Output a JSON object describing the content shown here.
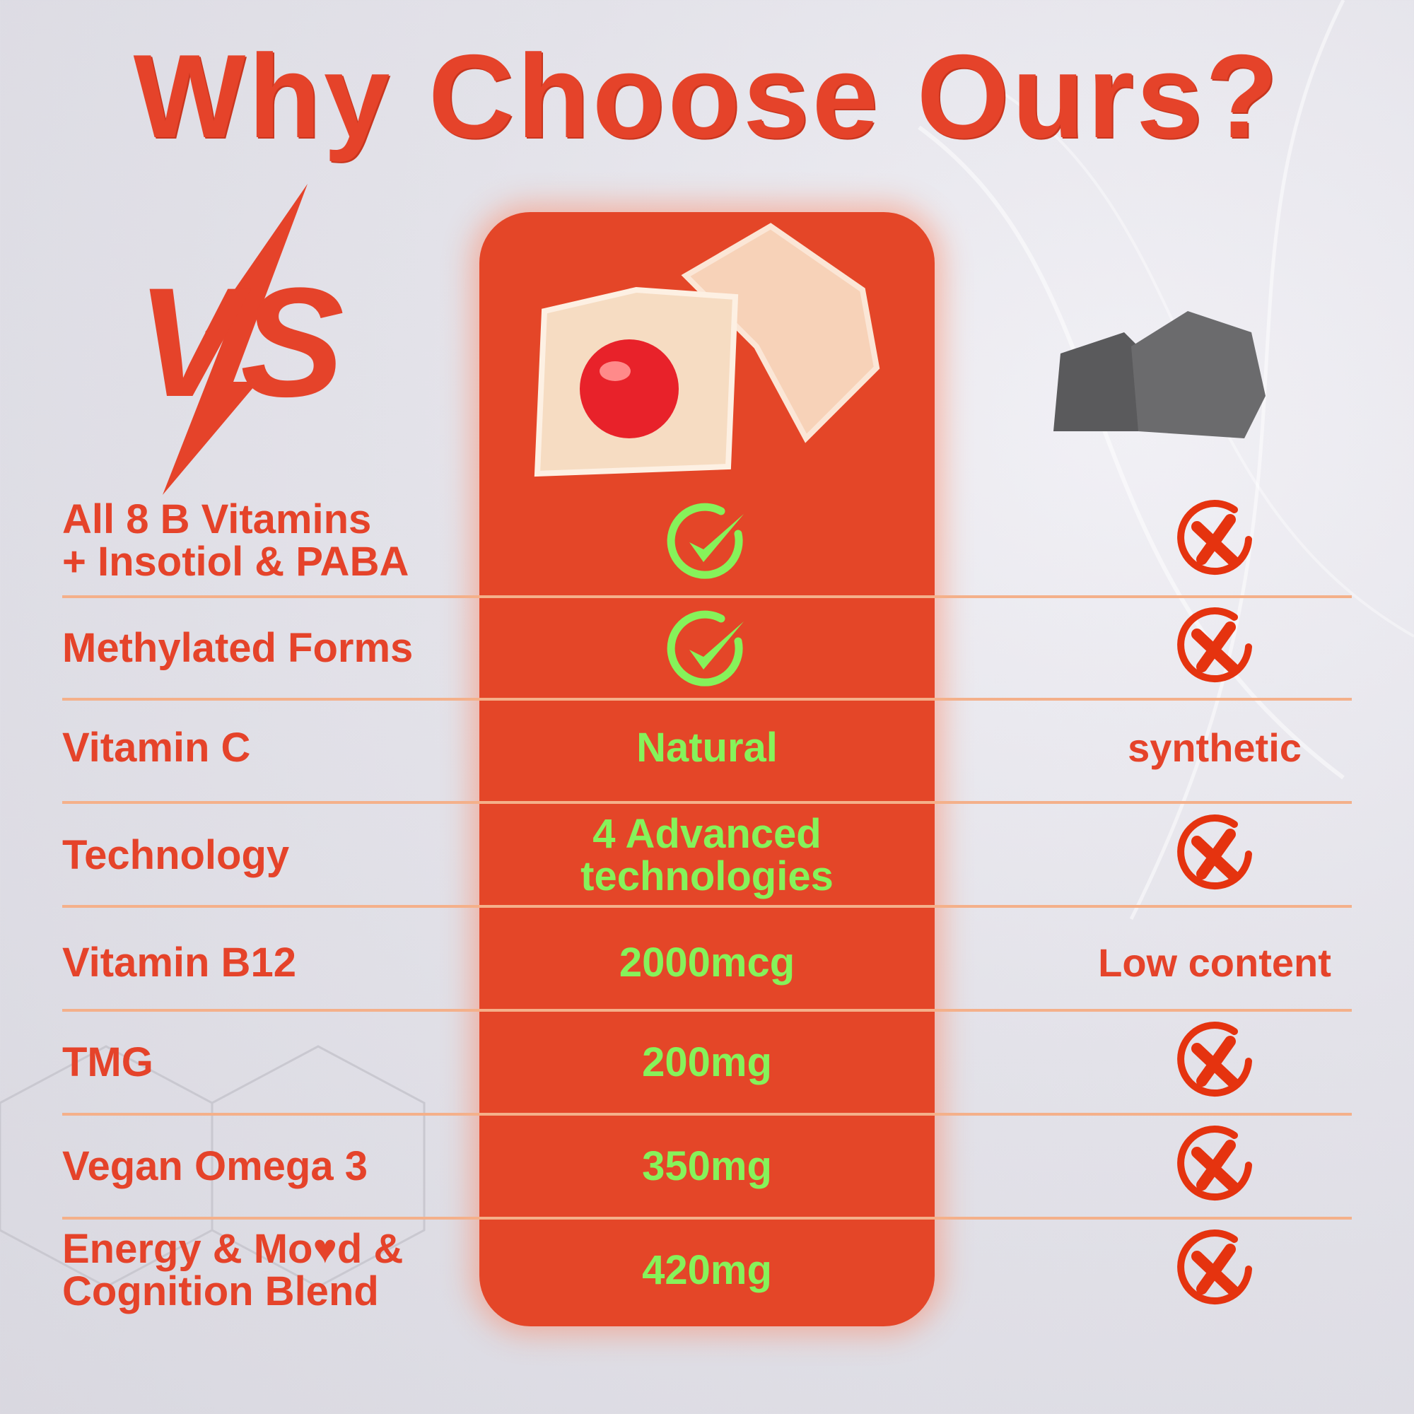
{
  "title": "Why Choose Ours?",
  "vs_logo": "VS",
  "colors": {
    "accent": "#e5432a",
    "column": "#e44628",
    "positive": "#86f25a",
    "divider": "#f4b08a"
  },
  "rows": [
    {
      "label": "All 8 B Vitamins\n+ Insotiol & PABA",
      "ours": {
        "type": "icon",
        "icon": "check-circle-icon"
      },
      "theirs": {
        "type": "icon",
        "icon": "x-circle-icon"
      }
    },
    {
      "label": "Methylated Forms",
      "ours": {
        "type": "icon",
        "icon": "check-circle-icon"
      },
      "theirs": {
        "type": "icon",
        "icon": "x-circle-icon"
      }
    },
    {
      "label": "Vitamin C",
      "ours": {
        "type": "text",
        "text": "Natural"
      },
      "theirs": {
        "type": "text",
        "text": "synthetic"
      }
    },
    {
      "label": "Technology",
      "ours": {
        "type": "text",
        "text": "4 Advanced\ntechnologies"
      },
      "theirs": {
        "type": "icon",
        "icon": "x-circle-icon"
      }
    },
    {
      "label": "Vitamin B12",
      "ours": {
        "type": "text",
        "text": "2000mcg"
      },
      "theirs": {
        "type": "text",
        "text": "Low content"
      }
    },
    {
      "label": "TMG",
      "ours": {
        "type": "text",
        "text": "200mg"
      },
      "theirs": {
        "type": "icon",
        "icon": "x-circle-icon"
      }
    },
    {
      "label": "Vegan Omega 3",
      "ours": {
        "type": "text",
        "text": "350mg"
      },
      "theirs": {
        "type": "icon",
        "icon": "x-circle-icon"
      }
    },
    {
      "label": "Energy & Mo♥d &\nCognition Blend",
      "ours": {
        "type": "text",
        "text": "420mg"
      },
      "theirs": {
        "type": "icon",
        "icon": "x-circle-icon"
      }
    }
  ]
}
